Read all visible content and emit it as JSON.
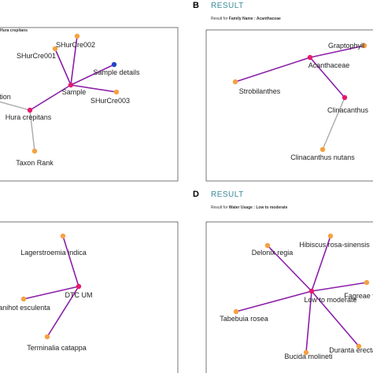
{
  "panels": [
    {
      "subtitle_value": "Hura crepitans",
      "nodes": [
        {
          "label": "Sample"
        },
        {
          "label": "SHurCre002"
        },
        {
          "label": "SHurCre001"
        },
        {
          "label": "Sample details"
        },
        {
          "label": "SHurCre003"
        },
        {
          "label": "Hura crepitans"
        },
        {
          "label": "ation"
        },
        {
          "label": "Taxon Rank"
        }
      ]
    },
    {
      "letter": "B",
      "heading": "RESULT",
      "subtitle_prefix": "Result for",
      "subtitle_key": "Family Name : Acanthaceae",
      "nodes": [
        {
          "label": "Acanthaceae"
        },
        {
          "label": "Graptophyll"
        },
        {
          "label": "Strobilanthes"
        },
        {
          "label": "Clinacanthus"
        },
        {
          "label": "Clinacanthus nutans"
        }
      ]
    },
    {
      "nodes": [
        {
          "label": "DTC UM"
        },
        {
          "label": "Lagerstroemia indica"
        },
        {
          "label": "lanihot esculenta"
        },
        {
          "label": "Terminalia catappa"
        }
      ]
    },
    {
      "letter": "D",
      "heading": "RESULT",
      "subtitle_prefix": "Result for",
      "subtitle_key": "Water Usage : Low to moderate",
      "nodes": [
        {
          "label": "Low to moderate"
        },
        {
          "label": "Hibiscus rosa-sinensis"
        },
        {
          "label": "Delonix regia"
        },
        {
          "label": "Fagreae fr"
        },
        {
          "label": "Tabebuia rosea"
        },
        {
          "label": "Duranta erecta"
        },
        {
          "label": "Bucida molineti"
        }
      ]
    }
  ]
}
